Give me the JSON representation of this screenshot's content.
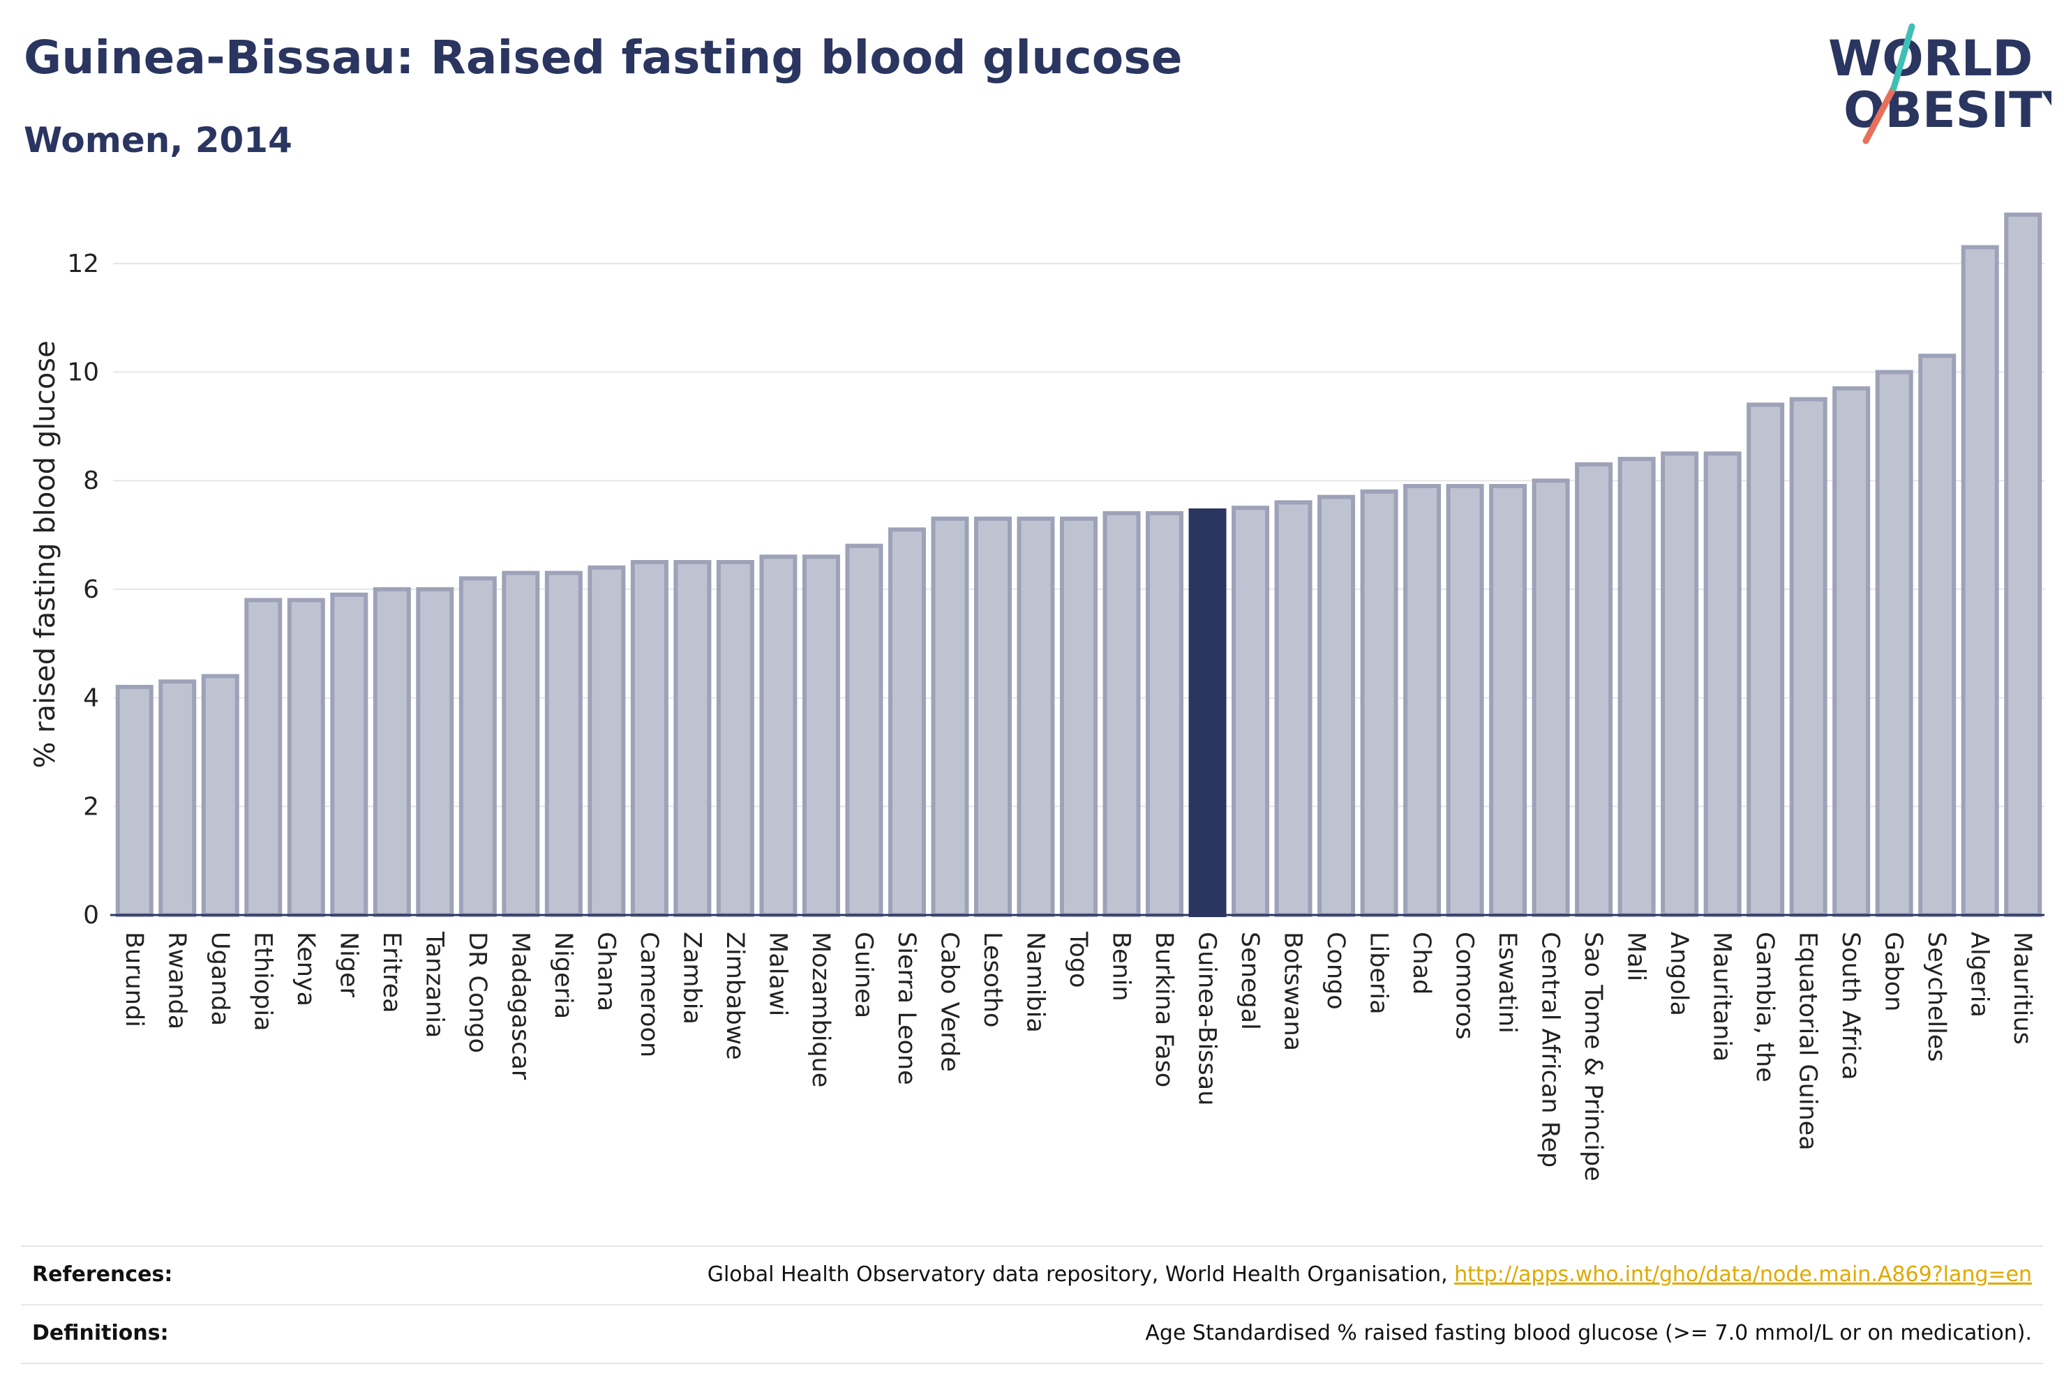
{
  "header": {
    "title": "Guinea-Bissau: Raised fasting blood glucose",
    "subtitle": "Women, 2014"
  },
  "logo": {
    "line1": "WORLD",
    "line2": "OBESITY",
    "colors": {
      "text": "#2a3560",
      "slash_red": "#e8705a",
      "slash_teal": "#3fbfb5"
    }
  },
  "colors": {
    "bar_fill": "#bfc3d1",
    "bar_stroke": "#9da2b8",
    "highlight": "#2a3560",
    "grid": "#e6e6e6",
    "axis": "#2a3560"
  },
  "chart_data": {
    "type": "bar",
    "highlight": "Guinea-Bissau",
    "ylabel": "% raised fasting blood glucose",
    "ylim": [
      0,
      13
    ],
    "yticks": [
      0,
      2,
      4,
      6,
      8,
      10,
      12
    ],
    "grid": true,
    "categories": [
      "Burundi",
      "Rwanda",
      "Uganda",
      "Ethiopia",
      "Kenya",
      "Niger",
      "Eritrea",
      "Tanzania",
      "DR Congo",
      "Madagascar",
      "Nigeria",
      "Ghana",
      "Cameroon",
      "Zambia",
      "Zimbabwe",
      "Malawi",
      "Mozambique",
      "Guinea",
      "Sierra Leone",
      "Cabo Verde",
      "Lesotho",
      "Namibia",
      "Togo",
      "Benin",
      "Burkina Faso",
      "Guinea-Bissau",
      "Senegal",
      "Botswana",
      "Congo",
      "Liberia",
      "Chad",
      "Comoros",
      "Eswatini",
      "Central African Rep",
      "Sao Tome & Principe",
      "Mali",
      "Angola",
      "Mauritania",
      "Gambia, the",
      "Equatorial Guinea",
      "South Africa",
      "Gabon",
      "Seychelles",
      "Algeria",
      "Mauritius"
    ],
    "values": [
      4.2,
      4.3,
      4.4,
      5.8,
      5.8,
      5.9,
      6.0,
      6.0,
      6.2,
      6.3,
      6.3,
      6.4,
      6.5,
      6.5,
      6.5,
      6.6,
      6.6,
      6.8,
      7.1,
      7.3,
      7.3,
      7.3,
      7.3,
      7.4,
      7.4,
      7.45,
      7.5,
      7.6,
      7.7,
      7.8,
      7.9,
      7.9,
      7.9,
      8.0,
      8.3,
      8.4,
      8.5,
      8.5,
      9.4,
      9.5,
      9.7,
      10.0,
      10.3,
      12.3,
      12.9
    ]
  },
  "footer": {
    "references_label": "References:",
    "references_text": "Global Health Observatory data repository, World Health Organisation, ",
    "references_link": "http://apps.who.int/gho/data/node.main.A869?lang=en",
    "definitions_label": "Definitions:",
    "definitions_text": "Age Standardised % raised fasting blood glucose (>= 7.0 mmol/L or on medication)."
  }
}
